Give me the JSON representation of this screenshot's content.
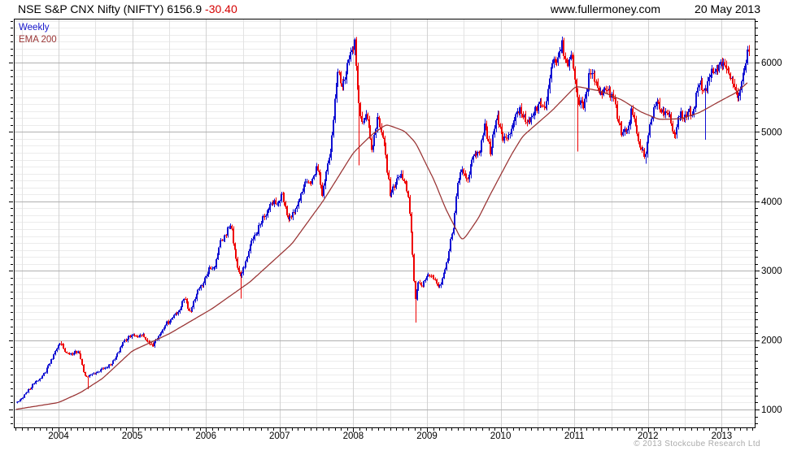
{
  "header": {
    "title": "NSE S&P CNX Nifty (NIFTY)",
    "last_price": "6156.9",
    "change": "-30.40",
    "website": "www.fullermoney.com",
    "date": "20 May 2013"
  },
  "legend": {
    "series_label": "Weekly",
    "ema_label": "EMA 200"
  },
  "footer": {
    "copyright": "© 2013 Stockcube Research Ltd"
  },
  "colors": {
    "up": "#1010d2",
    "down": "#ee0000",
    "ema": "#993333",
    "grid_minor": "#ececec",
    "grid_major": "#b0b0b0",
    "grid_year": "#d2d2d2",
    "grid_half_year": "#e3e3e3",
    "axis": "#000000",
    "label": "#000000",
    "copyright": "#aaaaaa"
  },
  "chart_data": {
    "type": "candlestick",
    "title": "NSE S&P CNX Nifty (NIFTY)",
    "timeframe": "Weekly",
    "overlay": "EMA 200",
    "last": {
      "close": 6156.9,
      "change": -30.4
    },
    "x_ticks": [
      2004,
      2005,
      2006,
      2007,
      2008,
      2009,
      2010,
      2011,
      2012,
      2013
    ],
    "y_ticks": [
      1000,
      2000,
      3000,
      4000,
      5000,
      6000
    ],
    "x_range": [
      2003.42,
      2013.45
    ],
    "y_range": [
      740,
      6630
    ],
    "grid": {
      "minor_y_step": 100,
      "minor_x_step_years": 0.5
    },
    "price_close_anchors": [
      [
        2003.42,
        1090
      ],
      [
        2003.5,
        1160
      ],
      [
        2003.58,
        1260
      ],
      [
        2003.67,
        1390
      ],
      [
        2003.75,
        1440
      ],
      [
        2003.83,
        1560
      ],
      [
        2003.92,
        1760
      ],
      [
        2003.98,
        1900
      ],
      [
        2004.04,
        1945
      ],
      [
        2004.1,
        1820
      ],
      [
        2004.17,
        1790
      ],
      [
        2004.23,
        1850
      ],
      [
        2004.29,
        1780
      ],
      [
        2004.35,
        1500
      ],
      [
        2004.4,
        1470
      ],
      [
        2004.48,
        1520
      ],
      [
        2004.56,
        1560
      ],
      [
        2004.65,
        1620
      ],
      [
        2004.73,
        1660
      ],
      [
        2004.79,
        1790
      ],
      [
        2004.87,
        1950
      ],
      [
        2004.96,
        2070
      ],
      [
        2005.04,
        2050
      ],
      [
        2005.12,
        2085
      ],
      [
        2005.2,
        1990
      ],
      [
        2005.28,
        1920
      ],
      [
        2005.37,
        2090
      ],
      [
        2005.45,
        2210
      ],
      [
        2005.54,
        2320
      ],
      [
        2005.62,
        2390
      ],
      [
        2005.7,
        2610
      ],
      [
        2005.78,
        2390
      ],
      [
        2005.87,
        2650
      ],
      [
        2005.96,
        2835
      ],
      [
        2006.04,
        3010
      ],
      [
        2006.12,
        3075
      ],
      [
        2006.2,
        3400
      ],
      [
        2006.28,
        3560
      ],
      [
        2006.34,
        3660
      ],
      [
        2006.4,
        3240
      ],
      [
        2006.46,
        2880
      ],
      [
        2006.54,
        3130
      ],
      [
        2006.62,
        3420
      ],
      [
        2006.7,
        3590
      ],
      [
        2006.78,
        3750
      ],
      [
        2006.87,
        3960
      ],
      [
        2006.96,
        3980
      ],
      [
        2007.04,
        4085
      ],
      [
        2007.12,
        3760
      ],
      [
        2007.2,
        3830
      ],
      [
        2007.28,
        4090
      ],
      [
        2007.37,
        4300
      ],
      [
        2007.45,
        4330
      ],
      [
        2007.53,
        4500
      ],
      [
        2007.58,
        4110
      ],
      [
        2007.65,
        4460
      ],
      [
        2007.72,
        5030
      ],
      [
        2007.79,
        5910
      ],
      [
        2007.83,
        5710
      ],
      [
        2007.89,
        5790
      ],
      [
        2007.96,
        6140
      ],
      [
        2008.02,
        6280
      ],
      [
        2008.07,
        5390
      ],
      [
        2008.12,
        5130
      ],
      [
        2008.18,
        5230
      ],
      [
        2008.25,
        4740
      ],
      [
        2008.33,
        5170
      ],
      [
        2008.42,
        4880
      ],
      [
        2008.5,
        4050
      ],
      [
        2008.58,
        4340
      ],
      [
        2008.66,
        4370
      ],
      [
        2008.72,
        4230
      ],
      [
        2008.76,
        3930
      ],
      [
        2008.8,
        3290
      ],
      [
        2008.84,
        2590
      ],
      [
        2008.88,
        2860
      ],
      [
        2008.93,
        2760
      ],
      [
        2009.0,
        2960
      ],
      [
        2009.08,
        2880
      ],
      [
        2009.17,
        2770
      ],
      [
        2009.25,
        3020
      ],
      [
        2009.33,
        3480
      ],
      [
        2009.37,
        3620
      ],
      [
        2009.41,
        4270
      ],
      [
        2009.46,
        4460
      ],
      [
        2009.54,
        4300
      ],
      [
        2009.62,
        4650
      ],
      [
        2009.7,
        4670
      ],
      [
        2009.78,
        5090
      ],
      [
        2009.86,
        4720
      ],
      [
        2009.95,
        5200
      ],
      [
        2010.04,
        4890
      ],
      [
        2010.12,
        4930
      ],
      [
        2010.2,
        5250
      ],
      [
        2010.29,
        5290
      ],
      [
        2010.37,
        5100
      ],
      [
        2010.45,
        5320
      ],
      [
        2010.53,
        5380
      ],
      [
        2010.62,
        5410
      ],
      [
        2010.7,
        6040
      ],
      [
        2010.78,
        6020
      ],
      [
        2010.83,
        6250
      ],
      [
        2010.87,
        6100
      ],
      [
        2010.91,
        5980
      ],
      [
        2010.96,
        6130
      ],
      [
        2011.04,
        5510
      ],
      [
        2011.12,
        5340
      ],
      [
        2011.2,
        5830
      ],
      [
        2011.29,
        5760
      ],
      [
        2011.37,
        5560
      ],
      [
        2011.45,
        5650
      ],
      [
        2011.53,
        5490
      ],
      [
        2011.6,
        5180
      ],
      [
        2011.64,
        5010
      ],
      [
        2011.71,
        4950
      ],
      [
        2011.78,
        5340
      ],
      [
        2011.83,
        5060
      ],
      [
        2011.88,
        4840
      ],
      [
        2011.96,
        4630
      ],
      [
        2012.04,
        5210
      ],
      [
        2012.12,
        5390
      ],
      [
        2012.2,
        5310
      ],
      [
        2012.28,
        5250
      ],
      [
        2012.36,
        4930
      ],
      [
        2012.44,
        5280
      ],
      [
        2012.52,
        5240
      ],
      [
        2012.6,
        5270
      ],
      [
        2012.68,
        5690
      ],
      [
        2012.76,
        5630
      ],
      [
        2012.84,
        5740
      ],
      [
        2012.88,
        5880
      ],
      [
        2012.96,
        5920
      ],
      [
        2013.04,
        6030
      ],
      [
        2013.08,
        5910
      ],
      [
        2013.13,
        5700
      ],
      [
        2013.19,
        5620
      ],
      [
        2013.24,
        5510
      ],
      [
        2013.28,
        5740
      ],
      [
        2013.32,
        5950
      ],
      [
        2013.36,
        6157
      ]
    ],
    "ema_anchors": [
      [
        2003.42,
        1002
      ],
      [
        2004.0,
        1100
      ],
      [
        2004.3,
        1245
      ],
      [
        2004.6,
        1450
      ],
      [
        2005.0,
        1845
      ],
      [
        2005.5,
        2090
      ],
      [
        2006.08,
        2450
      ],
      [
        2006.6,
        2840
      ],
      [
        2007.17,
        3390
      ],
      [
        2007.6,
        4020
      ],
      [
        2008.0,
        4700
      ],
      [
        2008.25,
        4960
      ],
      [
        2008.45,
        5110
      ],
      [
        2008.7,
        5010
      ],
      [
        2008.85,
        4840
      ],
      [
        2009.0,
        4510
      ],
      [
        2009.1,
        4300
      ],
      [
        2009.25,
        3900
      ],
      [
        2009.48,
        3420
      ],
      [
        2009.7,
        3760
      ],
      [
        2009.85,
        4080
      ],
      [
        2010.0,
        4380
      ],
      [
        2010.15,
        4680
      ],
      [
        2010.3,
        4940
      ],
      [
        2010.7,
        5310
      ],
      [
        2011.02,
        5660
      ],
      [
        2011.35,
        5590
      ],
      [
        2011.65,
        5460
      ],
      [
        2011.9,
        5290
      ],
      [
        2012.15,
        5180
      ],
      [
        2012.45,
        5190
      ],
      [
        2012.7,
        5280
      ],
      [
        2012.97,
        5440
      ],
      [
        2013.2,
        5570
      ],
      [
        2013.36,
        5720
      ]
    ],
    "spike_lows": [
      [
        2004.4,
        1295
      ],
      [
        2006.46,
        2600
      ],
      [
        2008.07,
        4520
      ],
      [
        2008.84,
        2255
      ],
      [
        2011.05,
        4720
      ],
      [
        2011.96,
        4540
      ],
      [
        2012.77,
        4890
      ]
    ],
    "spike_highs": [
      [
        2004.04,
        1985
      ],
      [
        2008.02,
        6360
      ],
      [
        2010.83,
        6340
      ],
      [
        2013.36,
        6230
      ]
    ]
  }
}
